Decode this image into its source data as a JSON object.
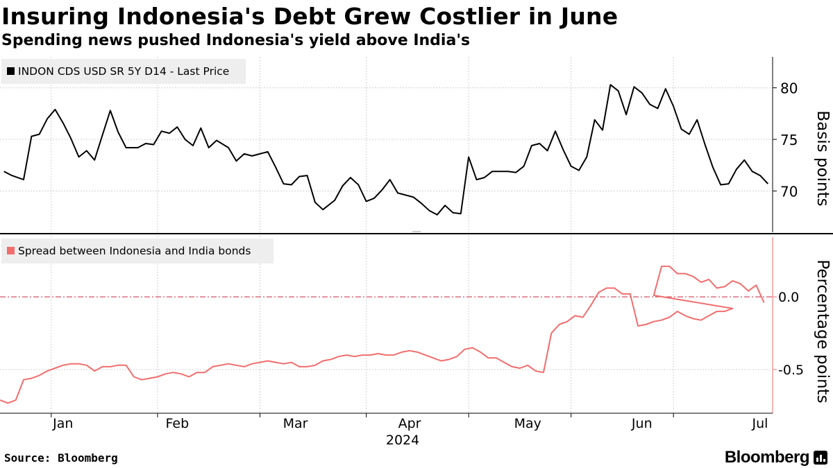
{
  "header": {
    "title": "Insuring Indonesia's Debt Grew Costlier in June",
    "subtitle": "Spending news pushed Indonesia's yield above India's"
  },
  "footer": {
    "source": "Source: Bloomberg",
    "brand": "Bloomberg"
  },
  "colors": {
    "cds_line": "#000000",
    "spread_line": "#f26d6d",
    "zero_line": "#c8283c",
    "grid": "#d0d0d0",
    "axis": "#000000",
    "legend_bg": "#eeeeee"
  },
  "chart_data": [
    {
      "type": "line",
      "legend": "INDON CDS USD SR 5Y D14 - Last Price",
      "ylabel": "Basis points",
      "ylim": [
        66,
        83
      ],
      "yticks": [
        70,
        75,
        80
      ],
      "series_color": "#000000",
      "x": [
        1,
        3,
        6,
        8,
        10,
        12,
        14,
        16,
        18,
        20,
        22,
        24,
        26,
        28,
        30,
        32,
        35,
        37,
        39,
        41,
        43,
        45,
        47,
        49,
        51,
        53,
        55,
        58,
        60,
        62,
        64,
        66,
        68,
        70,
        72,
        74,
        76,
        78,
        80,
        82,
        85,
        87,
        89,
        91,
        93,
        95,
        97,
        99,
        101,
        103,
        105,
        107,
        109,
        111,
        113,
        115,
        117,
        119,
        121,
        123,
        125,
        127,
        129,
        131,
        133,
        135,
        137,
        139,
        141,
        143,
        145,
        147,
        149,
        151,
        153,
        155,
        157,
        159,
        161,
        163,
        165,
        167,
        169,
        171,
        173,
        175,
        177,
        179,
        181,
        183,
        185,
        187,
        189,
        191,
        193,
        195
      ],
      "values": [
        71.9,
        71.5,
        71.1,
        75.3,
        75.5,
        77.0,
        77.9,
        76.6,
        75.1,
        73.3,
        73.9,
        73.0,
        75.4,
        77.8,
        75.7,
        74.2,
        74.2,
        74.6,
        74.5,
        75.8,
        75.6,
        76.2,
        75.0,
        74.4,
        76.1,
        74.2,
        74.9,
        74.2,
        72.9,
        73.6,
        73.4,
        73.6,
        73.8,
        72.3,
        70.7,
        70.6,
        71.4,
        71.5,
        68.9,
        68.2,
        69.1,
        70.5,
        71.3,
        70.6,
        69.0,
        69.3,
        70.1,
        71.1,
        69.8,
        69.6,
        69.4,
        68.8,
        68.1,
        67.7,
        68.6,
        67.9,
        67.8,
        73.3,
        71.1,
        71.3,
        71.9,
        71.9,
        71.9,
        71.8,
        72.4,
        74.4,
        74.6,
        73.9,
        75.8,
        74.0,
        72.4,
        72.0,
        73.3,
        76.9,
        75.9,
        80.3,
        79.7,
        77.4,
        80.1,
        79.5,
        78.4,
        78.0,
        79.9,
        78.2,
        76.0,
        75.5,
        76.9,
        74.5,
        72.3,
        70.6,
        70.7,
        72.1,
        73.0,
        71.9,
        71.5,
        70.7
      ],
      "series_b_x": [
        141,
        143,
        145,
        147,
        149,
        151,
        153,
        155,
        157,
        159,
        161,
        163,
        165,
        167,
        169,
        171,
        173,
        175,
        177,
        179,
        181,
        183,
        185,
        187,
        189,
        191,
        193,
        195
      ],
      "note": "single continuous series"
    },
    {
      "type": "line",
      "legend": "Spread between Indonesia and India bonds",
      "ylabel": "Percentage points",
      "ylim": [
        -0.8,
        0.42
      ],
      "yticks": [
        0.0,
        -0.5
      ],
      "yticklabels": [
        "0.0",
        "-0.5"
      ],
      "reference_line": 0.0,
      "series_color": "#f26d6d",
      "x": [],
      "values": []
    }
  ],
  "xaxis": {
    "months": [
      "Jan",
      "Feb",
      "Mar",
      "Apr",
      "May",
      "Jun",
      "Jul"
    ],
    "year": "2024"
  }
}
